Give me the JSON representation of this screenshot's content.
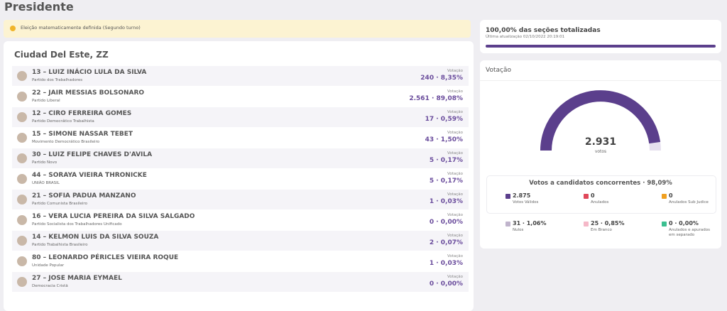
{
  "header": {
    "title": "Presidente"
  },
  "alert": "Eleição matematicamente definida (Segundo turno)",
  "location": "Ciudad Del Este, ZZ",
  "candidates": [
    {
      "name": "13 – LUIZ INÁCIO LULA DA SILVA",
      "party": "Partido dos Trabalhadores",
      "label": "Votação",
      "result": "240 · 8,35%"
    },
    {
      "name": "22 – JAIR MESSIAS BOLSONARO",
      "party": "Partido Liberal",
      "label": "Votação",
      "result": "2.561 · 89,08%"
    },
    {
      "name": "12 – CIRO FERREIRA GOMES",
      "party": "Partido Democrático Trabalhista",
      "label": "Votação",
      "result": "17 · 0,59%"
    },
    {
      "name": "15 – SIMONE NASSAR TEBET",
      "party": "Movimento Democrático Brasileiro",
      "label": "Votação",
      "result": "43 · 1,50%"
    },
    {
      "name": "30 – LUIZ FELIPE CHAVES D'AVILA",
      "party": "Partido Novo",
      "label": "Votação",
      "result": "5 · 0,17%"
    },
    {
      "name": "44 – SORAYA VIEIRA THRONICKE",
      "party": "UNIÃO BRASIL",
      "label": "Votação",
      "result": "5 · 0,17%"
    },
    {
      "name": "21 – SOFIA PADUA MANZANO",
      "party": "Partido Comunista Brasileiro",
      "label": "Votação",
      "result": "1 · 0,03%"
    },
    {
      "name": "16 – VERA LUCIA PEREIRA DA SILVA SALGADO",
      "party": "Partido Socialista dos Trabalhadores Unificado",
      "label": "Votação",
      "result": "0 · 0,00%"
    },
    {
      "name": "14 – KELMON LUIS DA SILVA SOUZA",
      "party": "Partido Trabalhista Brasileiro",
      "label": "Votação",
      "result": "2 · 0,07%"
    },
    {
      "name": "80 – LEONARDO PÉRICLES VIEIRA ROQUE",
      "party": "Unidade Popular",
      "label": "Votação",
      "result": "1 · 0,03%"
    },
    {
      "name": "27 – JOSE MARIA EYMAEL",
      "party": "Democracia Cristã",
      "label": "Votação",
      "result": "0 · 0,00%"
    }
  ],
  "progress": {
    "title": "100,00% das seções totalizadas",
    "updated": "Última atualização 02/10/2022 20:19:01"
  },
  "votes_panel": {
    "title": "Votação",
    "total": "2.931",
    "total_label": "votos",
    "summary": "Votos a candidatos concorrentes · 98,09%",
    "stats": [
      {
        "value": "2.875",
        "label": "Votos Válidos",
        "color": "#5b3f8c"
      },
      {
        "value": "0",
        "label": "Anulados",
        "color": "#e0485a"
      },
      {
        "value": "0",
        "label": "Anulados Sub Judice",
        "color": "#f0a020"
      },
      {
        "value": "31 · 1,06%",
        "label": "Nulos",
        "color": "#c0b4cc"
      },
      {
        "value": "25 · 0,85%",
        "label": "Em Branco",
        "color": "#f5b8c8"
      },
      {
        "value": "0 · 0,00%",
        "label": "Anulados e apurados em separado",
        "color": "#3cbf90"
      }
    ]
  }
}
